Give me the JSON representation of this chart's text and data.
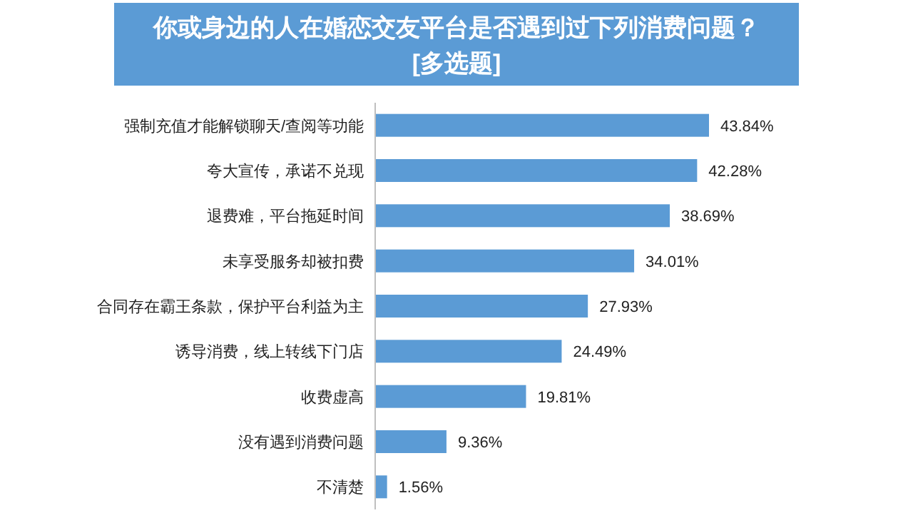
{
  "chart_data": {
    "type": "bar",
    "orientation": "horizontal",
    "title": "你或身边的人在婚恋交友平台是否遇到过下列消费问题？",
    "subtitle": "[多选题]",
    "categories": [
      "强制充值才能解锁聊天/查阅等功能",
      "夸大宣传，承诺不兑现",
      "退费难，平台拖延时间",
      "未享受服务却被扣费",
      "合同存在霸王条款，保护平台利益为主",
      "诱导消费，线上转线下门店",
      "收费虚高",
      "没有遇到消费问题",
      "不清楚"
    ],
    "values": [
      43.84,
      42.28,
      38.69,
      34.01,
      27.93,
      24.49,
      19.81,
      9.36,
      1.56
    ],
    "value_labels": [
      "43.84%",
      "42.28%",
      "38.69%",
      "34.01%",
      "27.93%",
      "24.49%",
      "19.81%",
      "9.36%",
      "1.56%"
    ],
    "color": "#5b9bd5"
  }
}
